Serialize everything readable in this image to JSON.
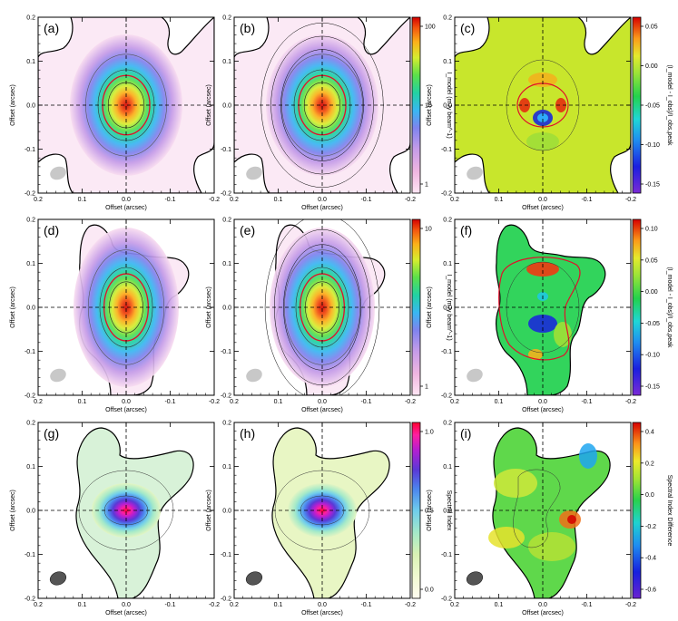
{
  "figure": {
    "panels": [
      {
        "label": "(a)",
        "row": 0,
        "col": 0,
        "content": "intensity",
        "contour": "solid"
      },
      {
        "label": "(b)",
        "row": 0,
        "col": 1,
        "content": "intensity",
        "contour": "model"
      },
      {
        "label": "(c)",
        "row": 0,
        "col": 2,
        "content": "residual",
        "contour": "solid"
      },
      {
        "label": "(d)",
        "row": 1,
        "col": 0,
        "content": "intensity",
        "contour": "solid"
      },
      {
        "label": "(e)",
        "row": 1,
        "col": 1,
        "content": "intensity",
        "contour": "model"
      },
      {
        "label": "(f)",
        "row": 1,
        "col": 2,
        "content": "residual",
        "contour": "solid"
      },
      {
        "label": "(g)",
        "row": 2,
        "col": 0,
        "content": "spectral",
        "contour": "solid"
      },
      {
        "label": "(h)",
        "row": 2,
        "col": 1,
        "content": "spectral",
        "contour": "model"
      },
      {
        "label": "(i)",
        "row": 2,
        "col": 2,
        "content": "specdiff",
        "contour": "solid"
      }
    ],
    "colorbars": [
      {
        "row": 0,
        "name": "Intensity",
        "label": "I_model (mJy beam^-1)",
        "ticks": [
          "100",
          "10",
          "1"
        ],
        "scale": "log"
      },
      {
        "row": 0,
        "name": "Residual",
        "label": "(I_model - I_obs)/I_obs,peak",
        "ticks": [
          "0.05",
          "0.00",
          "-0.05",
          "-0.10",
          "-0.15"
        ],
        "scale": "linear"
      },
      {
        "row": 1,
        "name": "Intensity",
        "label": "I_model (mJy beam^-1)",
        "ticks": [
          "10",
          "1"
        ],
        "scale": "log"
      },
      {
        "row": 1,
        "name": "Residual",
        "label": "(I_model - I_obs)/I_obs,peak",
        "ticks": [
          "0.10",
          "0.05",
          "0.00",
          "-0.05",
          "-0.10",
          "-0.15"
        ],
        "scale": "linear"
      },
      {
        "row": 2,
        "name": "Spectral",
        "label": "Spectral Index",
        "ticks": [
          "1.0",
          "0.5",
          "0.0"
        ],
        "scale": "linear"
      },
      {
        "row": 2,
        "name": "SpecDiff",
        "label": "Spectral Index Difference",
        "ticks": [
          "0.4",
          "0.2",
          "0.0",
          "-0.2",
          "-0.4",
          "-0.6"
        ],
        "scale": "linear"
      }
    ],
    "axis_text": {
      "xlabel": "Offset (arcsec)",
      "ylabel": "Offset (arcsec)",
      "xticks": [
        "0.2",
        "0.1",
        "0.0",
        "-0.1",
        "-0.2"
      ],
      "yticks": [
        "0.2",
        "0.1",
        "0.0",
        "-0.1",
        "-0.2"
      ]
    }
  },
  "chart_data": {
    "type": "heatmap",
    "title": "",
    "xlabel": "Offset (arcsec)",
    "ylabel": "Offset (arcsec)",
    "xlim": [
      0.2,
      -0.2
    ],
    "ylim": [
      -0.2,
      0.2
    ],
    "xticks": [
      0.2,
      0.1,
      0.0,
      -0.1,
      -0.2
    ],
    "yticks": [
      -0.2,
      -0.1,
      0.0,
      0.1,
      0.2
    ],
    "panels": [
      "(a)",
      "(b)",
      "(c)",
      "(d)",
      "(e)",
      "(f)",
      "(g)",
      "(h)",
      "(i)"
    ],
    "colorbar_ranges": {
      "intensity_row1_mJy_per_beam": [
        0.5,
        120
      ],
      "residual_row1": [
        -0.16,
        0.055
      ],
      "intensity_row2_mJy_per_beam": [
        0.5,
        30
      ],
      "residual_row2": [
        -0.17,
        0.12
      ],
      "spectral_index": [
        -0.15,
        1.15
      ],
      "spectral_index_difference": [
        -0.68,
        0.52
      ]
    },
    "peak_position_arcsec": [
      0.0,
      0.0
    ],
    "crosshair_arcsec": {
      "x": 0.0,
      "y": 0.0
    }
  }
}
